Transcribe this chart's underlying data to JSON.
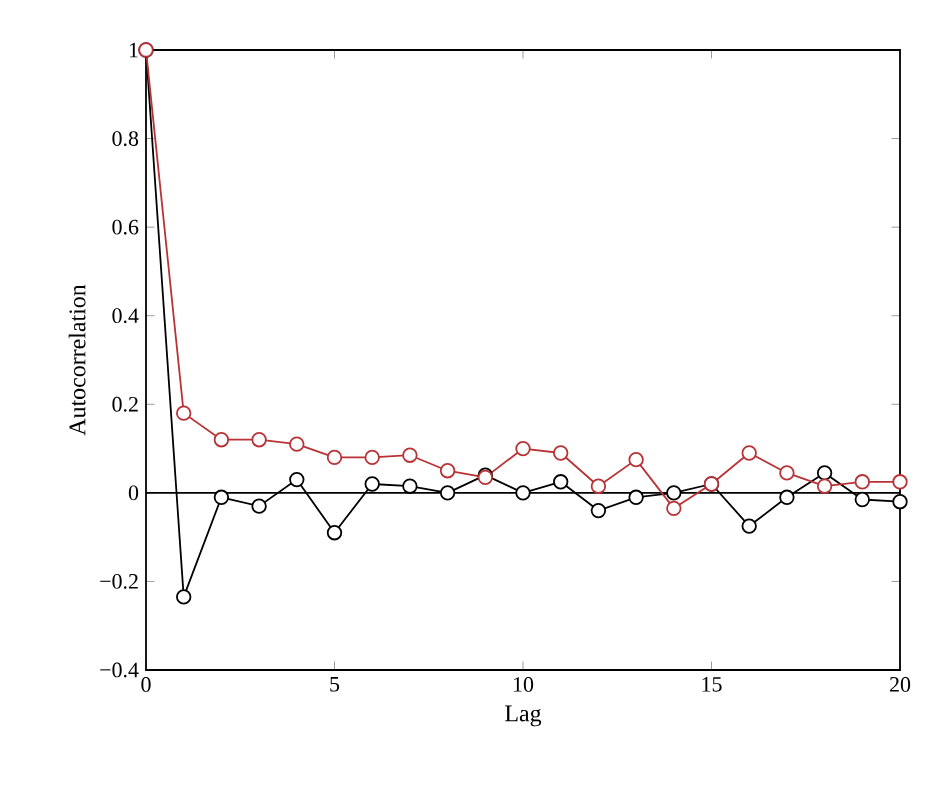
{
  "chart_data": {
    "type": "line",
    "xlabel": "Lag",
    "ylabel": "Autocorrelation",
    "x": [
      0,
      1,
      2,
      3,
      4,
      5,
      6,
      7,
      8,
      9,
      10,
      11,
      12,
      13,
      14,
      15,
      16,
      17,
      18,
      19,
      20
    ],
    "series": [
      {
        "color": "#000000",
        "values": [
          1,
          -0.235,
          -0.01,
          -0.03,
          0.03,
          -0.09,
          0.02,
          0.015,
          0,
          0.04,
          0,
          0.025,
          -0.04,
          -0.01,
          0,
          0.02,
          -0.075,
          -0.01,
          0.045,
          -0.015,
          -0.02
        ]
      },
      {
        "color": "#b83236",
        "values": [
          1,
          0.18,
          0.12,
          0.12,
          0.11,
          0.08,
          0.08,
          0.085,
          0.05,
          0.035,
          0.1,
          0.09,
          0.015,
          0.075,
          -0.035,
          0.02,
          0.09,
          0.045,
          0.015,
          0.025,
          0.025
        ]
      }
    ],
    "xlim": [
      0,
      20
    ],
    "xticks": [
      0,
      5,
      10,
      15,
      20
    ],
    "ylim": [
      -0.4,
      1
    ],
    "yticks": [
      {
        "value": -0.4,
        "label": "−0.4"
      },
      {
        "value": -0.2,
        "label": "−0.2"
      },
      0,
      0.2,
      0.4,
      0.6,
      0.8,
      1
    ],
    "ref_lines": [
      {
        "axis": "y",
        "value": 0,
        "color": "#000000"
      }
    ],
    "marker": "circle",
    "line_style": "solid",
    "grid": false
  }
}
